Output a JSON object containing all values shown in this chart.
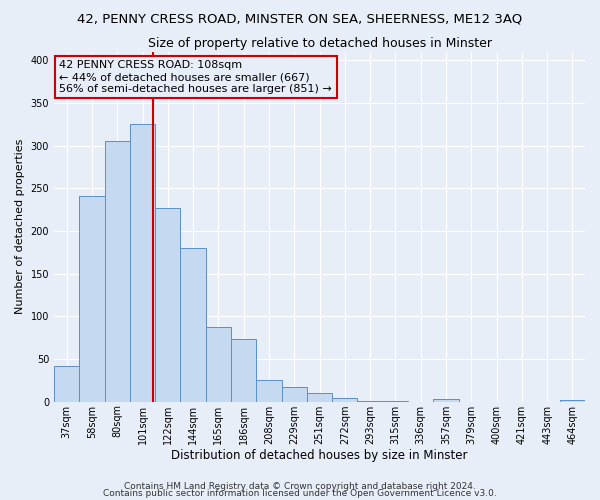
{
  "title_main": "42, PENNY CRESS ROAD, MINSTER ON SEA, SHEERNESS, ME12 3AQ",
  "title_sub": "Size of property relative to detached houses in Minster",
  "xlabel": "Distribution of detached houses by size in Minster",
  "ylabel": "Number of detached properties",
  "bar_labels": [
    "37sqm",
    "58sqm",
    "80sqm",
    "101sqm",
    "122sqm",
    "144sqm",
    "165sqm",
    "186sqm",
    "208sqm",
    "229sqm",
    "251sqm",
    "272sqm",
    "293sqm",
    "315sqm",
    "336sqm",
    "357sqm",
    "379sqm",
    "400sqm",
    "421sqm",
    "443sqm",
    "464sqm"
  ],
  "bar_heights": [
    42,
    241,
    305,
    325,
    227,
    180,
    87,
    73,
    25,
    17,
    10,
    4,
    1,
    1,
    0,
    3,
    0,
    0,
    0,
    0,
    2
  ],
  "bar_color": "#c5d9f1",
  "bar_edge_color": "#5b8fc9",
  "vline_color": "#cc0000",
  "vline_pos": 3.42,
  "annotation_text": "42 PENNY CRESS ROAD: 108sqm\n← 44% of detached houses are smaller (667)\n56% of semi-detached houses are larger (851) →",
  "annotation_box_edge_color": "#cc0000",
  "ylim": [
    0,
    410
  ],
  "yticks": [
    0,
    50,
    100,
    150,
    200,
    250,
    300,
    350,
    400
  ],
  "footer_text1": "Contains HM Land Registry data © Crown copyright and database right 2024.",
  "footer_text2": "Contains public sector information licensed under the Open Government Licence v3.0.",
  "bg_color": "#e8eef8",
  "grid_color": "#ffffff",
  "title_fontsize": 9.5,
  "subtitle_fontsize": 9,
  "ylabel_fontsize": 8,
  "xlabel_fontsize": 8.5,
  "tick_fontsize": 7,
  "annotation_fontsize": 8,
  "footer_fontsize": 6.5
}
